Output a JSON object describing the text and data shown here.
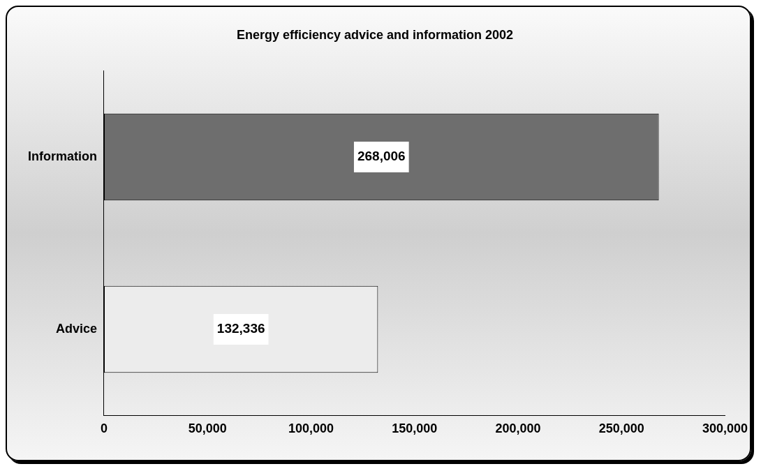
{
  "chart_data": {
    "type": "bar",
    "orientation": "horizontal",
    "title": "Energy efficiency advice and information 2002",
    "categories": [
      "Information",
      "Advice"
    ],
    "values": [
      268006,
      132336
    ],
    "colors": [
      "#6e6e6e",
      "#ececec"
    ],
    "value_labels": [
      "268,006",
      "132,336"
    ],
    "xlim": [
      0,
      300000
    ],
    "xticks": [
      0,
      {
        "value": 50000,
        "label": "50,000"
      },
      {
        "value": 100000,
        "label": "100,000"
      },
      {
        "value": 150000,
        "label": "150,000"
      },
      {
        "value": 200000,
        "label": "200,000"
      },
      {
        "value": 250000,
        "label": "250,000"
      },
      {
        "value": 300000,
        "label": "300,000"
      }
    ],
    "grid": false,
    "legend": false
  }
}
